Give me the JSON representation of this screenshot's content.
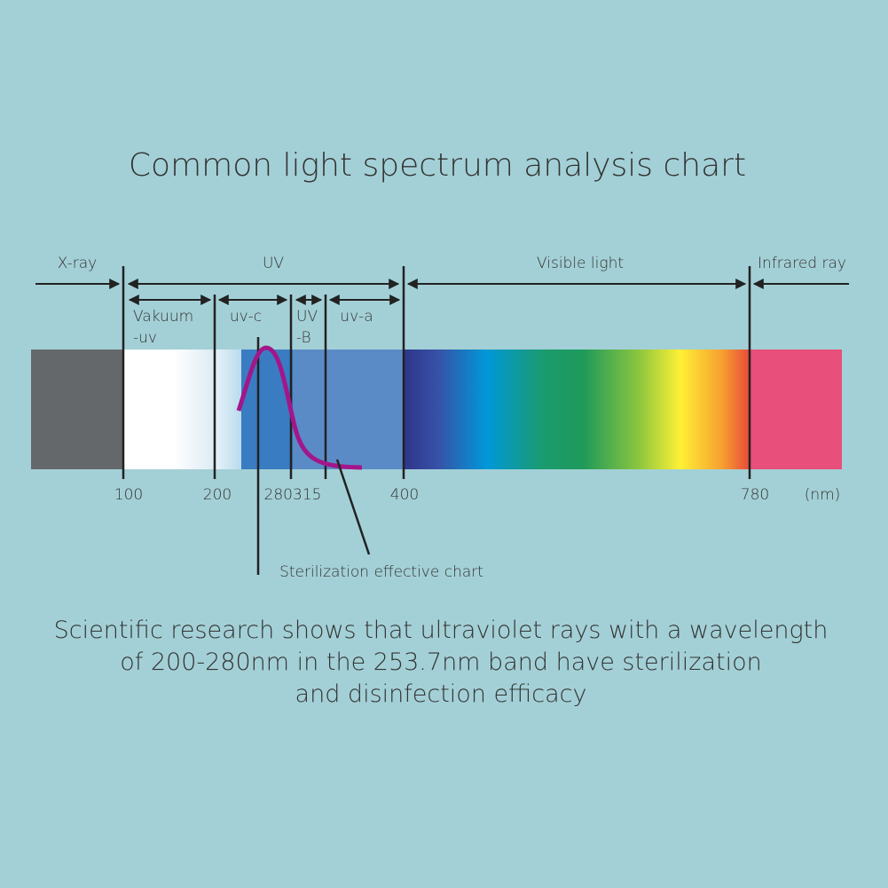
{
  "title": "Common light spectrum analysis chart",
  "regions": [
    "X-ray",
    "UV",
    "Visible light",
    "Infrared ray"
  ],
  "subregions": [
    [
      "Vakuum",
      "-uv"
    ],
    [
      "uv-c"
    ],
    [
      "UV",
      "-B"
    ],
    [
      "uv-a"
    ]
  ],
  "ticks": [
    "100",
    "200",
    "280",
    "315",
    "400",
    "780",
    "(nm)"
  ],
  "annotation": "Sterilization effective chart",
  "description": [
    "Scientific research shows that ultraviolet rays with a wavelength",
    "of 200-280nm in the 253.7nm band have sterilization",
    "and disinfection efficacy"
  ]
}
